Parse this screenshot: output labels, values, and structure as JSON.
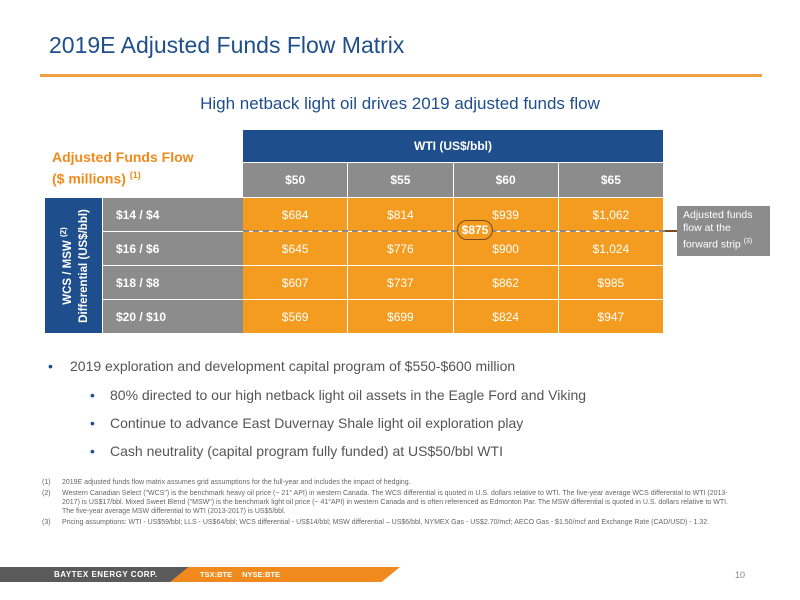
{
  "title": "2019E Adjusted Funds Flow Matrix",
  "subtitle": "High netback light oil drives 2019 adjusted funds flow",
  "matrix": {
    "label_line1": "Adjusted Funds Flow",
    "label_line2": "($ millions)",
    "label_ref": "(1)",
    "col_group_header": "WTI (US$/bbl)",
    "columns": [
      "$50",
      "$55",
      "$60",
      "$65"
    ],
    "row_group_label_line1": "WCS / MSW",
    "row_group_label_ref": "(2)",
    "row_group_label_line2": "Differential (US$/bbl)",
    "rows": [
      {
        "label": "$14 / $4",
        "values": [
          "$684",
          "$814",
          "$939",
          "$1,062"
        ]
      },
      {
        "label": "$16 / $6",
        "values": [
          "$645",
          "$776",
          "$900",
          "$1,024"
        ]
      },
      {
        "label": "$18 / $8",
        "values": [
          "$607",
          "$737",
          "$862",
          "$985"
        ]
      },
      {
        "label": "$20 / $10",
        "values": [
          "$569",
          "$699",
          "$824",
          "$947"
        ]
      }
    ],
    "forward_strip_value": "$875",
    "callout_text": "Adjusted funds flow at the forward strip",
    "callout_ref": "(3)"
  },
  "bullets": {
    "main": "2019 exploration and development capital program of $550-$600 million",
    "sub": [
      "80% directed to our high netback light oil assets in the Eagle Ford and Viking",
      "Continue to advance East Duvernay Shale light oil exploration play",
      "Cash neutrality (capital program fully funded) at US$50/bbl WTI"
    ]
  },
  "footnotes": [
    {
      "num": "(1)",
      "text": "2019E adjusted funds flow matrix assumes grid assumptions for the full-year and includes the impact of hedging."
    },
    {
      "num": "(2)",
      "text": "Western Canadian Select (\"WCS\") is the benchmark heavy oil price (~ 21° API) in western Canada. The WCS differential is quoted in U.S. dollars relative to WTI. The five-year average WCS differential to WTI (2013-2017) is US$17/bbl. Mixed Sweet Blend (\"MSW\") is the benchmark light oil price (~ 41°API) in western Canada and is often referenced as Edmonton Par. The MSW differential is quoted in U.S. dollars relative to WTI. The five-year average MSW differential to WTI (2013-2017) is US$5/bbl."
    },
    {
      "num": "(3)",
      "text": "Pricing assumptions: WTI - US$59/bbl; LLS - US$64/bbl; WCS differential - US$14/bbl; MSW differential – US$6/bbl, NYMEX Gas - US$2.70/mcf; AECO Gas - $1.50/mcf and Exchange Rate (CAD/USD) - 1.32."
    }
  ],
  "footer": {
    "company": "BAYTEX ENERGY CORP.",
    "ticker_tsx": "TSX:BTE",
    "ticker_nyse": "NYSE:BTE",
    "page_number": "10"
  },
  "colors": {
    "navy": "#1f4e8c",
    "orange": "#f39c20",
    "gray": "#8c8c8c"
  }
}
